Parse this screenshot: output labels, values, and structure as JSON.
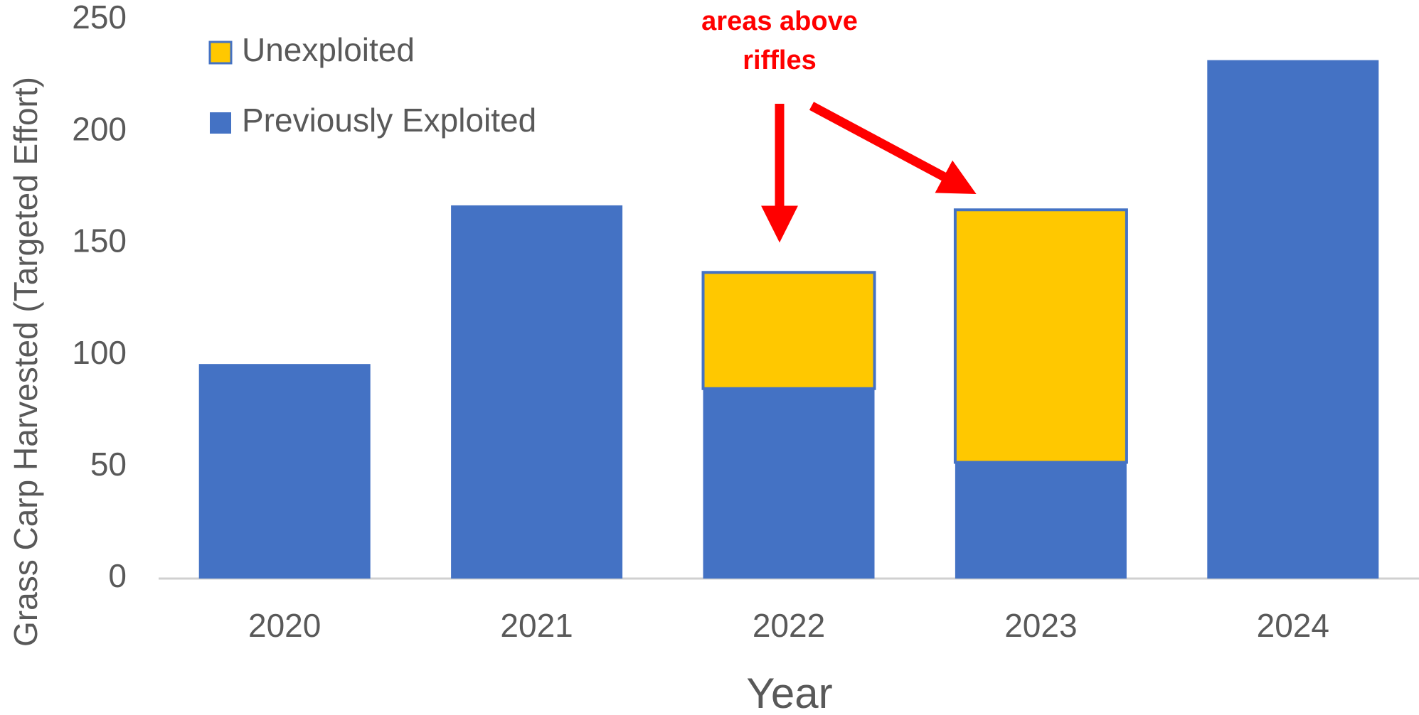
{
  "chart_data": {
    "type": "stacked_bar",
    "annotation": [
      "areas above",
      "riffles"
    ],
    "x_label": "Year",
    "y_label": "Grass Carp Harvested  (Targeted Effort)",
    "categories": [
      "2020",
      "2021",
      "2022",
      "2023",
      "2024"
    ],
    "series": [
      {
        "name": "Previously Exploited",
        "color": "#4472c4",
        "values": [
          96,
          167,
          85,
          52,
          232
        ]
      },
      {
        "name": "Unexploited",
        "color": "#ffc800",
        "values": [
          null,
          null,
          52,
          113,
          null
        ]
      }
    ],
    "ylim": [
      0,
      250
    ],
    "yticks": [
      0,
      50,
      100,
      150,
      200,
      250
    ],
    "grid": false
  }
}
